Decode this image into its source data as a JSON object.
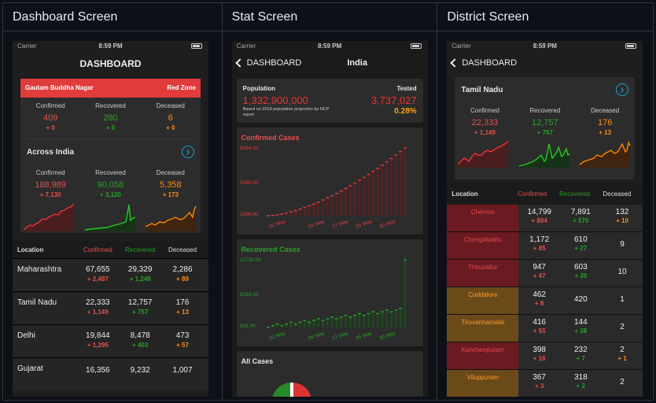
{
  "columns": [
    "Dashboard Screen",
    "Stat Screen",
    "District Screen"
  ],
  "status": {
    "carrier": "Carrier",
    "time": "8:59 PM"
  },
  "dashboard": {
    "title": "DASHBOARD",
    "zone": {
      "district": "Gautam Buddha Nagar",
      "label": "Red Zone"
    },
    "local": {
      "confirmed_label": "Confirmed",
      "recovered_label": "Recovered",
      "deceased_label": "Deceased",
      "confirmed": "409",
      "confirmed_delta": "+ 0",
      "recovered": "280",
      "recovered_delta": "+ 0",
      "deceased": "6",
      "deceased_delta": "+ 0"
    },
    "india": {
      "title": "Across India",
      "confirmed": "188,989",
      "confirmed_delta": "+ 7,130",
      "recovered": "90,058",
      "recovered_delta": "+ 3,120",
      "deceased": "5,358",
      "deceased_delta": "+ 173"
    },
    "table_headers": [
      "Location",
      "Confirmed",
      "Recovered",
      "Deceased"
    ],
    "rows": [
      {
        "name": "Maharashtra",
        "c": "67,655",
        "cd": "+ 2,487",
        "r": "29,329",
        "rd": "+ 1,248",
        "d": "2,286",
        "dd": "+ 89"
      },
      {
        "name": "Tamil Nadu",
        "c": "22,333",
        "cd": "+ 1,149",
        "r": "12,757",
        "rd": "+ 757",
        "d": "176",
        "dd": "+ 13"
      },
      {
        "name": "Delhi",
        "c": "19,844",
        "cd": "+ 1,295",
        "r": "8,478",
        "rd": "+ 403",
        "d": "473",
        "dd": "+ 57"
      },
      {
        "name": "Gujarat",
        "c": "16,356",
        "cd": "",
        "r": "9,232",
        "rd": "",
        "d": "1,007",
        "dd": ""
      }
    ]
  },
  "stat": {
    "back": "DASHBOARD",
    "title": "India",
    "population_label": "Population",
    "population": "1,332,900,000",
    "population_note": "Based on 2019 population projection by NCP report",
    "tested_label": "Tested",
    "tested": "3,737,027",
    "tested_pct": "0.28%",
    "all_cases": "All Cases",
    "confirmed_chart": {
      "title": "Confirmed Cases",
      "yticks": [
        "8364.00",
        "5380.00",
        "2396.00"
      ],
      "xticks": [
        "01 May",
        "09 May",
        "17 May",
        "25 May",
        "30 May"
      ]
    },
    "recovered_chart": {
      "title": "Recovered Cases",
      "yticks": [
        "11735.00",
        "6283.00",
        "831.00"
      ],
      "xticks": [
        "01 May",
        "09 May",
        "17 May",
        "25 May",
        "30 May"
      ]
    }
  },
  "district": {
    "back": "DASHBOARD",
    "state": "Tamil Nadu",
    "confirmed": "22,333",
    "confirmed_delta": "+ 1,149",
    "recovered": "12,757",
    "recovered_delta": "+ 757",
    "deceased": "176",
    "deceased_delta": "+ 13",
    "headers": [
      "Location",
      "Confirmed",
      "Recovered",
      "Deceased"
    ],
    "rows": [
      {
        "name": "Chennai",
        "c": "14,799",
        "cd": "+ 804",
        "r": "7,891",
        "rd": "+ 570",
        "d": "132",
        "dd": "+ 10",
        "zone": "#6b1a22"
      },
      {
        "name": "Chengalpattu",
        "c": "1,172",
        "cd": "+ 85",
        "r": "610",
        "rd": "+ 27",
        "d": "9",
        "dd": "",
        "zone": "#6b1a22"
      },
      {
        "name": "Thiruvallur",
        "c": "947",
        "cd": "+ 47",
        "r": "603",
        "rd": "+ 39",
        "d": "10",
        "dd": "",
        "zone": "#6b1a22"
      },
      {
        "name": "Cuddalore",
        "c": "462",
        "cd": "+ 8",
        "r": "420",
        "rd": "",
        "d": "1",
        "dd": "",
        "zone": "#6b4a1a"
      },
      {
        "name": "Tiruvannamalai",
        "c": "416",
        "cd": "+ 55",
        "r": "144",
        "rd": "+ 38",
        "d": "2",
        "dd": "",
        "zone": "#6b4a1a"
      },
      {
        "name": "Kancheepuram",
        "c": "398",
        "cd": "+ 16",
        "r": "232",
        "rd": "+ 7",
        "d": "2",
        "dd": "+ 1",
        "zone": "#6b1a22"
      },
      {
        "name": "Viluppuram",
        "c": "367",
        "cd": "+ 3",
        "r": "318",
        "rd": "+ 2",
        "d": "2",
        "dd": "",
        "zone": "#6b4a1a"
      }
    ]
  }
}
